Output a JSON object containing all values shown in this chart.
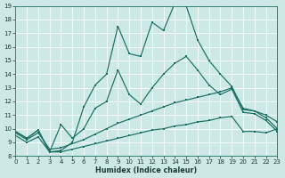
{
  "xlabel": "Humidex (Indice chaleur)",
  "bg_color": "#cce9e5",
  "grid_color": "#b8d9d4",
  "line_color": "#1a6e62",
  "xmin": 0,
  "xmax": 23,
  "ymin": 8,
  "ymax": 19,
  "curve1_x": [
    0,
    1,
    2,
    3,
    4,
    5,
    6,
    7,
    8,
    9,
    10,
    11,
    12,
    13,
    14,
    15,
    16,
    17,
    18,
    19,
    20,
    21,
    22,
    23
  ],
  "curve1_y": [
    9.8,
    9.3,
    9.9,
    8.3,
    8.4,
    9.0,
    11.6,
    13.2,
    14.0,
    17.5,
    15.5,
    15.3,
    17.8,
    17.2,
    19.2,
    19.0,
    16.5,
    15.0,
    14.0,
    13.1,
    11.4,
    11.3,
    10.8,
    10.0
  ],
  "curve2_x": [
    0,
    1,
    2,
    3,
    4,
    5,
    6,
    7,
    8,
    9,
    10,
    11,
    12,
    13,
    14,
    15,
    16,
    17,
    18,
    19,
    20,
    21,
    22,
    23
  ],
  "curve2_y": [
    9.8,
    9.3,
    9.9,
    8.3,
    10.3,
    9.3,
    10.0,
    11.5,
    12.0,
    14.3,
    12.5,
    11.8,
    13.0,
    14.0,
    14.8,
    15.3,
    14.3,
    13.2,
    12.5,
    12.9,
    11.2,
    11.1,
    10.6,
    9.8
  ],
  "curve3_x": [
    0,
    1,
    2,
    3,
    4,
    5,
    6,
    7,
    8,
    9,
    10,
    11,
    12,
    13,
    14,
    15,
    16,
    17,
    18,
    19,
    20,
    21,
    22,
    23
  ],
  "curve3_y": [
    9.7,
    9.2,
    9.7,
    8.5,
    8.6,
    8.9,
    9.2,
    9.6,
    10.0,
    10.4,
    10.7,
    11.0,
    11.3,
    11.6,
    11.9,
    12.1,
    12.3,
    12.5,
    12.7,
    13.0,
    11.5,
    11.3,
    11.0,
    10.5
  ],
  "curve4_x": [
    0,
    1,
    2,
    3,
    4,
    5,
    6,
    7,
    8,
    9,
    10,
    11,
    12,
    13,
    14,
    15,
    16,
    17,
    18,
    19,
    20,
    21,
    22,
    23
  ],
  "curve4_y": [
    9.5,
    9.0,
    9.4,
    8.3,
    8.3,
    8.5,
    8.7,
    8.9,
    9.1,
    9.3,
    9.5,
    9.7,
    9.9,
    10.0,
    10.2,
    10.3,
    10.5,
    10.6,
    10.8,
    10.9,
    9.8,
    9.8,
    9.7,
    10.0
  ]
}
